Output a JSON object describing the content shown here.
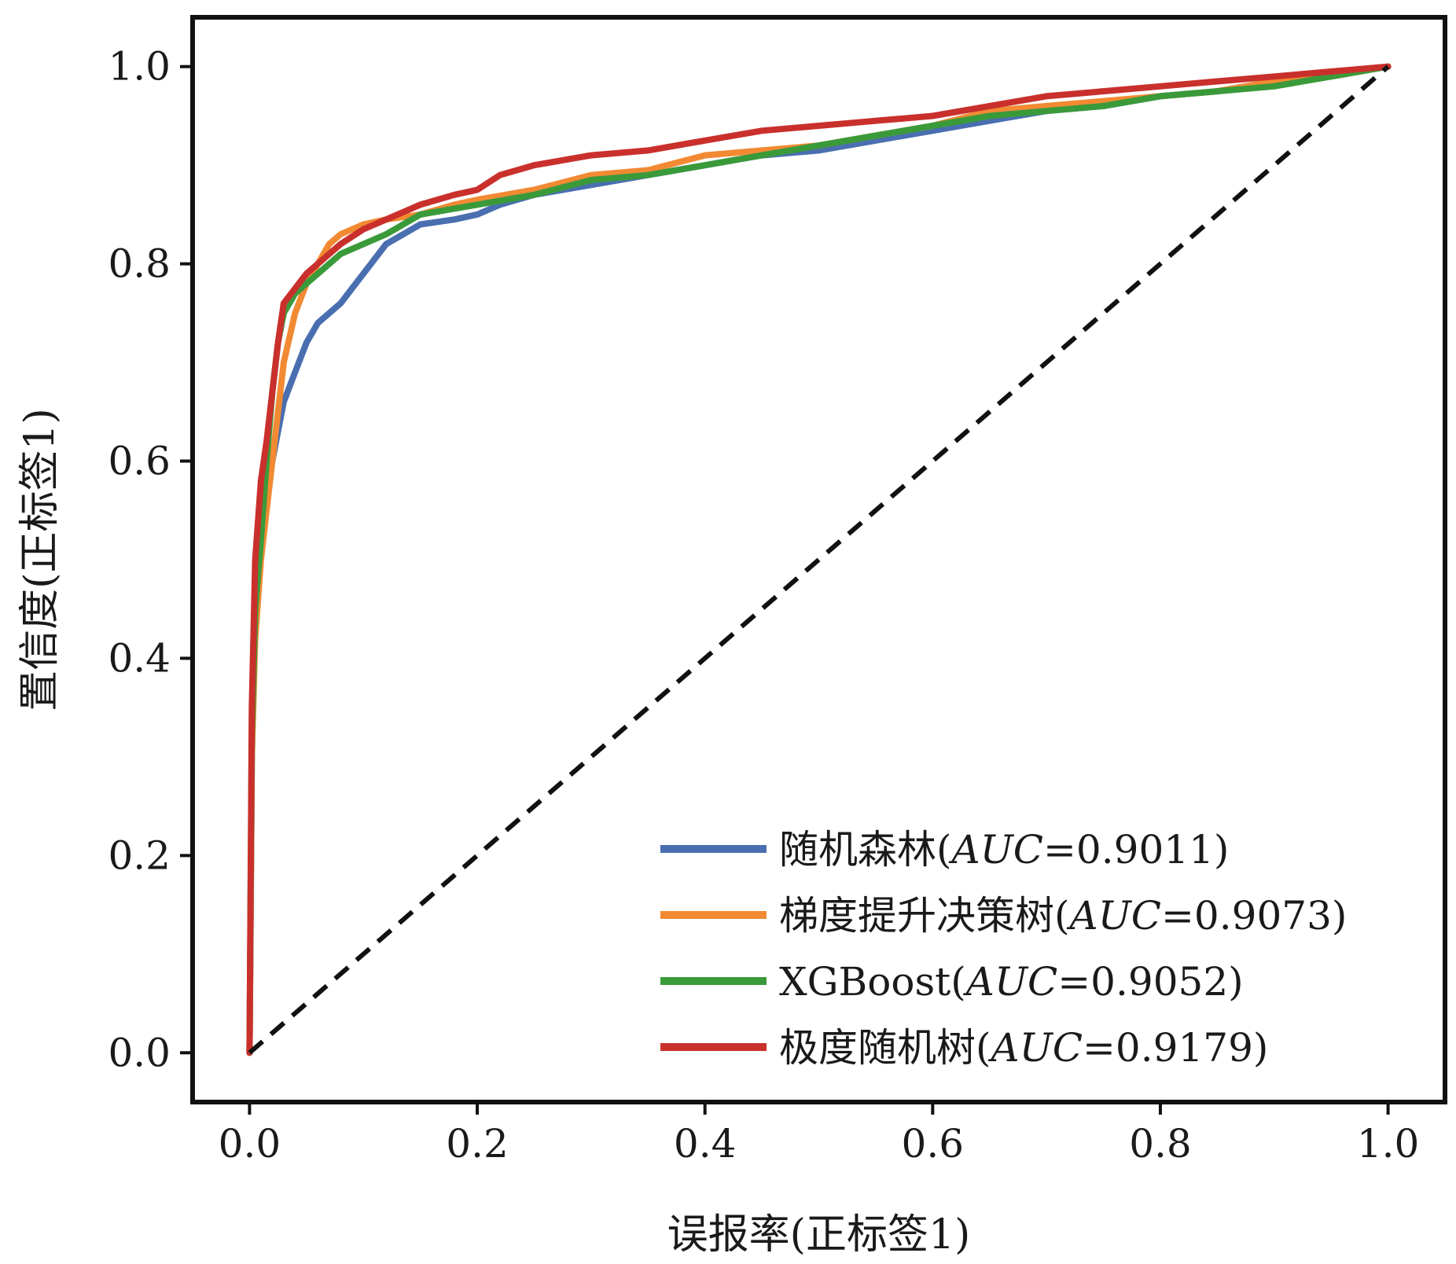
{
  "chart_data": {
    "type": "line",
    "title": "",
    "xlabel": "误报率(正标签1)",
    "ylabel": "置信度(正标签1)",
    "xlim": [
      -0.05,
      1.05
    ],
    "ylim": [
      -0.05,
      1.05
    ],
    "xticks": [
      "0.0",
      "0.2",
      "0.4",
      "0.6",
      "0.8",
      "1.0"
    ],
    "yticks": [
      "0.0",
      "0.2",
      "0.4",
      "0.6",
      "0.8",
      "1.0"
    ],
    "grid": false,
    "legend_position": "lower-right",
    "diagonal": {
      "style": "dashed",
      "color": "#111111",
      "x": [
        0,
        1
      ],
      "y": [
        0,
        1
      ]
    },
    "series": [
      {
        "name": "随机森林",
        "auc_var": "AUC",
        "auc_value": "=0.9011)",
        "color": "#4a6fb0",
        "x": [
          0,
          0.002,
          0.005,
          0.01,
          0.015,
          0.02,
          0.025,
          0.03,
          0.04,
          0.05,
          0.06,
          0.08,
          0.1,
          0.12,
          0.15,
          0.18,
          0.2,
          0.22,
          0.25,
          0.3,
          0.35,
          0.4,
          0.45,
          0.5,
          0.55,
          0.6,
          0.65,
          0.7,
          0.75,
          0.8,
          0.85,
          0.9,
          0.95,
          1.0
        ],
        "y": [
          0,
          0.3,
          0.45,
          0.52,
          0.57,
          0.6,
          0.63,
          0.66,
          0.69,
          0.72,
          0.74,
          0.76,
          0.79,
          0.82,
          0.84,
          0.845,
          0.85,
          0.86,
          0.87,
          0.88,
          0.89,
          0.9,
          0.91,
          0.915,
          0.925,
          0.935,
          0.945,
          0.955,
          0.96,
          0.97,
          0.975,
          0.985,
          0.99,
          1.0
        ]
      },
      {
        "name": "梯度提升决策树",
        "auc_var": "AUC",
        "auc_value": "=0.9073)",
        "color": "#f28a33",
        "x": [
          0,
          0.002,
          0.005,
          0.01,
          0.015,
          0.02,
          0.025,
          0.03,
          0.04,
          0.05,
          0.06,
          0.07,
          0.08,
          0.1,
          0.12,
          0.15,
          0.18,
          0.2,
          0.25,
          0.3,
          0.35,
          0.4,
          0.45,
          0.5,
          0.55,
          0.6,
          0.65,
          0.7,
          0.75,
          0.8,
          0.85,
          0.9,
          0.95,
          1.0
        ],
        "y": [
          0,
          0.3,
          0.42,
          0.5,
          0.55,
          0.6,
          0.65,
          0.7,
          0.75,
          0.78,
          0.8,
          0.82,
          0.83,
          0.84,
          0.845,
          0.85,
          0.86,
          0.865,
          0.875,
          0.89,
          0.895,
          0.91,
          0.915,
          0.92,
          0.93,
          0.94,
          0.955,
          0.96,
          0.965,
          0.97,
          0.975,
          0.985,
          0.99,
          1.0
        ]
      },
      {
        "name": "XGBoost",
        "auc_var": "AUC",
        "auc_value": "=0.9052)",
        "color": "#3a9a3a",
        "x": [
          0,
          0.002,
          0.005,
          0.01,
          0.015,
          0.02,
          0.025,
          0.03,
          0.04,
          0.05,
          0.06,
          0.08,
          0.1,
          0.12,
          0.15,
          0.2,
          0.25,
          0.3,
          0.35,
          0.4,
          0.45,
          0.5,
          0.55,
          0.6,
          0.65,
          0.7,
          0.75,
          0.8,
          0.85,
          0.9,
          0.95,
          1.0
        ],
        "y": [
          0,
          0.32,
          0.45,
          0.52,
          0.6,
          0.67,
          0.72,
          0.75,
          0.77,
          0.78,
          0.79,
          0.81,
          0.82,
          0.83,
          0.85,
          0.86,
          0.87,
          0.885,
          0.89,
          0.9,
          0.91,
          0.92,
          0.93,
          0.94,
          0.95,
          0.955,
          0.96,
          0.97,
          0.975,
          0.98,
          0.99,
          1.0
        ]
      },
      {
        "name": "极度随机树",
        "auc_var": "AUC",
        "auc_value": "=0.9179)",
        "color": "#c9302c",
        "x": [
          0,
          0.002,
          0.005,
          0.01,
          0.015,
          0.02,
          0.025,
          0.03,
          0.04,
          0.05,
          0.06,
          0.08,
          0.1,
          0.12,
          0.15,
          0.18,
          0.2,
          0.22,
          0.25,
          0.3,
          0.35,
          0.4,
          0.45,
          0.5,
          0.55,
          0.6,
          0.65,
          0.7,
          0.75,
          0.8,
          0.85,
          0.9,
          0.95,
          1.0
        ],
        "y": [
          0,
          0.35,
          0.5,
          0.58,
          0.62,
          0.67,
          0.72,
          0.76,
          0.775,
          0.79,
          0.8,
          0.82,
          0.835,
          0.845,
          0.86,
          0.87,
          0.875,
          0.89,
          0.9,
          0.91,
          0.915,
          0.925,
          0.935,
          0.94,
          0.945,
          0.95,
          0.96,
          0.97,
          0.975,
          0.98,
          0.985,
          0.99,
          0.995,
          1.0
        ]
      }
    ]
  }
}
